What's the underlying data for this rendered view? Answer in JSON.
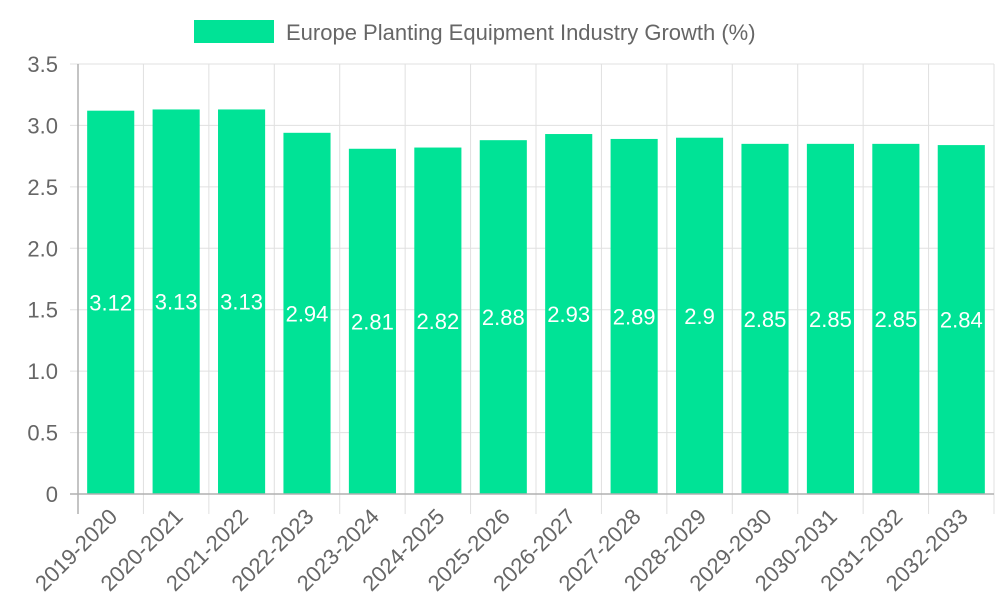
{
  "chart_data": {
    "type": "bar",
    "title": "",
    "legend": [
      {
        "label": "Europe Planting Equipment Industry Growth (%)",
        "color": "#00e396"
      }
    ],
    "legend_position": "top-center",
    "xlabel": "",
    "ylabel": "",
    "categories": [
      "2019-2020",
      "2020-2021",
      "2021-2022",
      "2022-2023",
      "2023-2024",
      "2024-2025",
      "2025-2026",
      "2026-2027",
      "2027-2028",
      "2028-2029",
      "2029-2030",
      "2030-2031",
      "2031-2032",
      "2032-2033"
    ],
    "series": [
      {
        "name": "Europe Planting Equipment Industry Growth (%)",
        "values": [
          3.12,
          3.13,
          3.13,
          2.94,
          2.81,
          2.82,
          2.88,
          2.93,
          2.89,
          2.9,
          2.85,
          2.85,
          2.85,
          2.84
        ],
        "color": "#00e396"
      }
    ],
    "data_labels": [
      "3.12",
      "3.13",
      "3.13",
      "2.94",
      "2.81",
      "2.82",
      "2.88",
      "2.93",
      "2.89",
      "2.9",
      "2.85",
      "2.85",
      "2.85",
      "2.84"
    ],
    "ylim": [
      0,
      3.5
    ],
    "y_ticks": [
      0,
      0.5,
      1.0,
      1.5,
      2.0,
      2.5,
      3.0,
      3.5
    ],
    "y_tick_labels": [
      "0",
      "0.5",
      "1.0",
      "1.5",
      "2.0",
      "2.5",
      "3.0",
      "3.5"
    ],
    "grid": true,
    "colors": {
      "bar": "#00e396",
      "grid": "#e0e0e0",
      "axis": "#b0b0b0",
      "text": "#666666"
    }
  }
}
